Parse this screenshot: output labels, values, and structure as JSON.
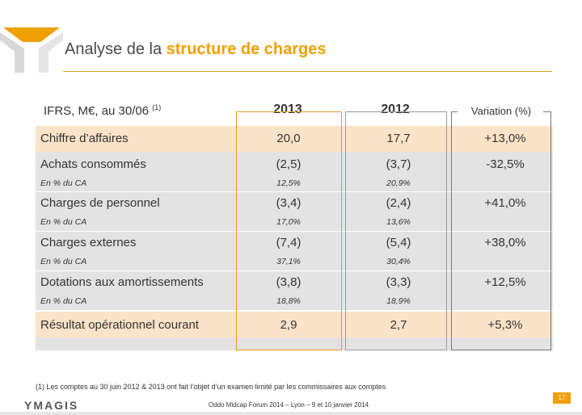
{
  "header": {
    "title_prefix": "Analyse de la ",
    "title_accent": "structure de charges",
    "logo_icon": "ymagis-y-logo-icon"
  },
  "table": {
    "units_label": "IFRS, M€, au 30/06 ",
    "units_note": "(1)",
    "col_2013": "2013",
    "col_2012": "2012",
    "col_variation": "Variation (%)",
    "rows": [
      {
        "label": "Chiffre d’affaires",
        "v2013": "20,0",
        "v2012": "17,7",
        "var": "+13,0%"
      },
      {
        "label": "Achats consommés",
        "sub": "En % du CA",
        "v2013": "(2,5)",
        "v2012": "(3,7)",
        "var": "-32,5%",
        "s2013": "12,5%",
        "s2012": "20,9%"
      },
      {
        "label": "Charges de personnel",
        "sub": "En % du CA",
        "v2013": "(3,4)",
        "v2012": "(2,4)",
        "var": "+41,0%",
        "s2013": "17,0%",
        "s2012": "13,6%"
      },
      {
        "label": "Charges externes",
        "sub": "En % du CA",
        "v2013": "(7,4)",
        "v2012": "(5,4)",
        "var": "+38,0%",
        "s2013": "37,1%",
        "s2012": "30,4%"
      },
      {
        "label": "Dotations aux amortissements",
        "sub": "En % du CA",
        "v2013": "(3,8)",
        "v2012": "(3,3)",
        "var": "+12,5%",
        "s2013": "18,8%",
        "s2012": "18,9%"
      },
      {
        "label": "Résultat opérationnel courant",
        "v2013": "2,9",
        "v2012": "2,7",
        "var": "+5,3%"
      }
    ]
  },
  "footer": {
    "footnote": "(1)    Les comptes au 30 juin 2012 & 2013 ont fait l’objet d’un examen limité par les commissaires aux comptes",
    "brand": "YMAGIS",
    "event": "Oddo Midcap Forum 2014 – Lyon – 9 et 10 janvier 2014",
    "page_number": "17"
  },
  "colors": {
    "accent": "#f0a000",
    "highlight_row": "#fbe3c7",
    "grey_row": "#e3e3e3"
  }
}
